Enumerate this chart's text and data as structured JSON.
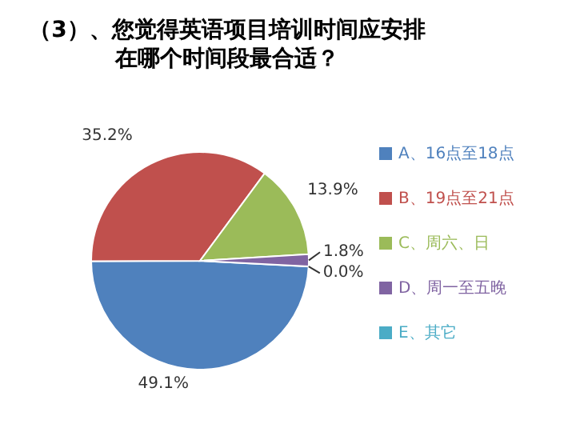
{
  "chart_data": {
    "type": "pie",
    "title": "（3）、您觉得英语项目培训时间应安排在哪个时间段最合适？",
    "categories": [
      "A、16点至18点",
      "B、19点至21点",
      "C、周六、日",
      "D、周一至五晚",
      "E、其它"
    ],
    "values": [
      49.1,
      35.2,
      13.9,
      1.8,
      0.0
    ],
    "colors": [
      "#4f81bd",
      "#c0504d",
      "#9bbb59",
      "#8064a2",
      "#4bacc6"
    ],
    "value_labels": [
      "49.1%",
      "35.2%",
      "13.9%",
      "1.8%",
      "0.0%"
    ],
    "legend": "right"
  }
}
